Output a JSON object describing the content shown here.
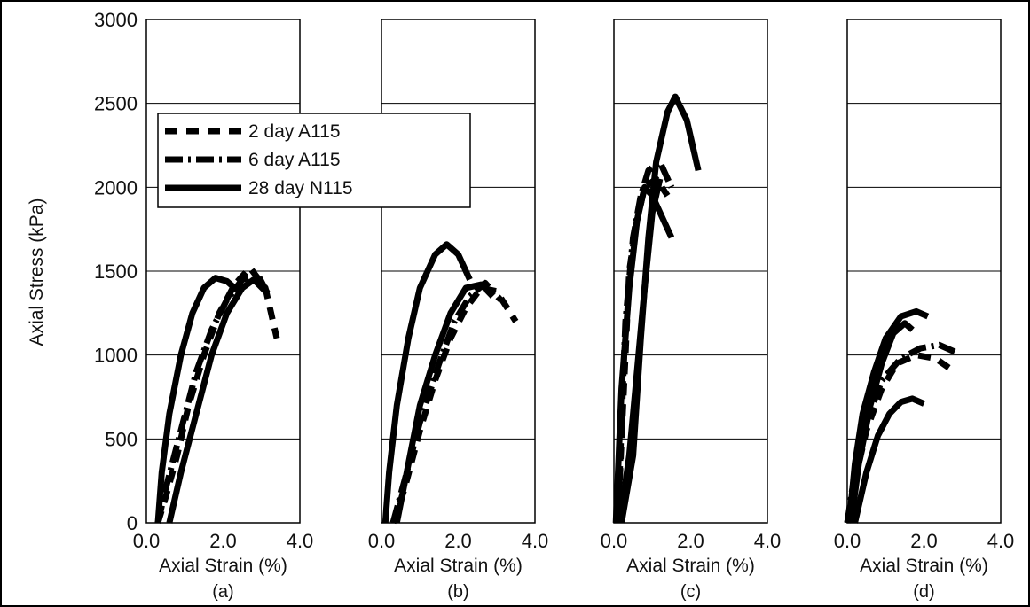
{
  "chart_data": [
    {
      "type": "line",
      "panel_label": "(a)",
      "xlabel": "Axial Strain (%)",
      "ylabel": "Axial Stress (kPa)",
      "xlim": [
        0,
        4
      ],
      "ylim": [
        0,
        3000
      ],
      "xticks": [
        "0.0",
        "2.0",
        "4.0"
      ],
      "yticks": [
        "0",
        "500",
        "1000",
        "1500",
        "2000",
        "2500",
        "3000"
      ],
      "grid": true,
      "series": [
        {
          "name": "2 day A115",
          "style": "dashed",
          "x": [
            0.3,
            0.5,
            0.8,
            1.1,
            1.5,
            1.9,
            2.3,
            2.7,
            3.1,
            3.4
          ],
          "y": [
            0,
            150,
            400,
            700,
            1000,
            1250,
            1420,
            1520,
            1400,
            1100
          ]
        },
        {
          "name": "6 day A115",
          "style": "dashdot",
          "x": [
            0.3,
            0.5,
            0.9,
            1.3,
            1.7,
            2.1,
            2.5,
            2.9,
            3.2
          ],
          "y": [
            0,
            200,
            550,
            900,
            1150,
            1330,
            1450,
            1480,
            1350
          ]
        },
        {
          "name": "28 day N115",
          "style": "solid",
          "x": [
            0.3,
            0.4,
            0.6,
            0.9,
            1.2,
            1.5,
            1.8,
            2.1,
            2.4
          ],
          "y": [
            0,
            300,
            650,
            1000,
            1250,
            1400,
            1460,
            1440,
            1380
          ]
        },
        {
          "name": "28 day N115",
          "style": "solid",
          "x": [
            0.6,
            0.9,
            1.3,
            1.7,
            2.1,
            2.5,
            2.8,
            3.1
          ],
          "y": [
            0,
            300,
            650,
            1000,
            1250,
            1400,
            1450,
            1380
          ]
        }
      ]
    },
    {
      "type": "line",
      "panel_label": "(b)",
      "xlabel": "Axial Strain (%)",
      "xlim": [
        0,
        4
      ],
      "ylim": [
        0,
        3000
      ],
      "xticks": [
        "0.0",
        "2.0",
        "4.0"
      ],
      "grid": true,
      "series": [
        {
          "name": "2 day A115",
          "style": "dashed",
          "x": [
            0.3,
            0.6,
            1.0,
            1.4,
            1.8,
            2.2,
            2.6,
            3.0,
            3.5
          ],
          "y": [
            0,
            200,
            550,
            850,
            1100,
            1280,
            1400,
            1380,
            1200
          ]
        },
        {
          "name": "6 day A115",
          "style": "dashdot",
          "x": [
            0.3,
            0.6,
            1.0,
            1.5,
            1.9,
            2.3,
            2.7,
            3.1
          ],
          "y": [
            0,
            250,
            600,
            950,
            1200,
            1350,
            1430,
            1330
          ]
        },
        {
          "name": "28 day N115",
          "style": "solid",
          "x": [
            0.1,
            0.2,
            0.4,
            0.7,
            1.0,
            1.4,
            1.7,
            2.0,
            2.3
          ],
          "y": [
            0,
            300,
            700,
            1100,
            1400,
            1600,
            1660,
            1600,
            1450
          ]
        },
        {
          "name": "28 day N115",
          "style": "solid",
          "x": [
            0.4,
            0.7,
            1.0,
            1.4,
            1.8,
            2.2,
            2.6,
            2.9
          ],
          "y": [
            0,
            350,
            700,
            1000,
            1250,
            1400,
            1420,
            1350
          ]
        }
      ]
    },
    {
      "type": "line",
      "panel_label": "(c)",
      "xlabel": "Axial Strain (%)",
      "xlim": [
        0,
        4
      ],
      "ylim": [
        0,
        3000
      ],
      "xticks": [
        "0.0",
        "2.0",
        "4.0"
      ],
      "grid": true,
      "series": [
        {
          "name": "2 day A115",
          "style": "dashed",
          "x": [
            0.1,
            0.2,
            0.3,
            0.4,
            0.6,
            0.8,
            1.1,
            1.4
          ],
          "y": [
            0,
            500,
            1000,
            1500,
            1800,
            2000,
            2050,
            1950
          ]
        },
        {
          "name": "6 day A115",
          "style": "dashdot",
          "x": [
            0.1,
            0.2,
            0.3,
            0.5,
            0.7,
            0.9,
            1.2,
            1.5
          ],
          "y": [
            0,
            600,
            1200,
            1700,
            1950,
            2100,
            2150,
            2000
          ]
        },
        {
          "name": "28 day N115",
          "style": "solid",
          "x": [
            0.2,
            0.5,
            0.7,
            0.9,
            1.1,
            1.4,
            1.6,
            1.9,
            2.2
          ],
          "y": [
            0,
            400,
            1100,
            1700,
            2150,
            2450,
            2540,
            2400,
            2100
          ]
        },
        {
          "name": "28 day N115",
          "style": "solid",
          "x": [
            0.05,
            0.2,
            0.4,
            0.6,
            0.8,
            1.0,
            1.2,
            1.5
          ],
          "y": [
            0,
            800,
            1400,
            1800,
            2000,
            1950,
            1850,
            1700
          ]
        },
        {
          "name": "28 day N115",
          "style": "solid",
          "x": [
            0.15,
            0.4,
            0.6,
            0.8,
            1.0,
            1.2
          ],
          "y": [
            0,
            400,
            900,
            1400,
            1850,
            2050
          ]
        }
      ]
    },
    {
      "type": "line",
      "panel_label": "(d)",
      "xlabel": "Axial Strain (%)",
      "xlim": [
        0,
        4
      ],
      "ylim": [
        0,
        3000
      ],
      "xticks": [
        "0.0",
        "2.0",
        "4.0"
      ],
      "grid": true,
      "series": [
        {
          "name": "2 day A115",
          "style": "dashed",
          "x": [
            0.0,
            0.2,
            0.5,
            0.9,
            1.3,
            1.8,
            2.3,
            2.8
          ],
          "y": [
            0,
            250,
            550,
            800,
            950,
            1000,
            980,
            900
          ]
        },
        {
          "name": "6 day A115",
          "style": "dashdot",
          "x": [
            0.0,
            0.2,
            0.5,
            0.9,
            1.4,
            1.9,
            2.4,
            2.8
          ],
          "y": [
            0,
            300,
            600,
            850,
            980,
            1040,
            1060,
            1020
          ]
        },
        {
          "name": "28 day N115",
          "style": "solid",
          "x": [
            0.05,
            0.2,
            0.4,
            0.7,
            1.0,
            1.4,
            1.8,
            2.1
          ],
          "y": [
            0,
            350,
            650,
            900,
            1100,
            1230,
            1260,
            1230
          ]
        },
        {
          "name": "28 day N115",
          "style": "solid",
          "x": [
            0.1,
            0.3,
            0.6,
            0.9,
            1.2,
            1.5,
            1.7
          ],
          "y": [
            0,
            350,
            700,
            950,
            1130,
            1190,
            1150
          ]
        },
        {
          "name": "28 day N115",
          "style": "solid",
          "x": [
            0.2,
            0.5,
            0.8,
            1.1,
            1.4,
            1.7,
            2.0
          ],
          "y": [
            0,
            300,
            520,
            650,
            720,
            740,
            710
          ]
        }
      ]
    }
  ],
  "legend": {
    "items": [
      {
        "label": "2 day A115",
        "style": "dashed"
      },
      {
        "label": "6 day A115",
        "style": "dashdot"
      },
      {
        "label": "28 day N115",
        "style": "solid"
      }
    ]
  }
}
